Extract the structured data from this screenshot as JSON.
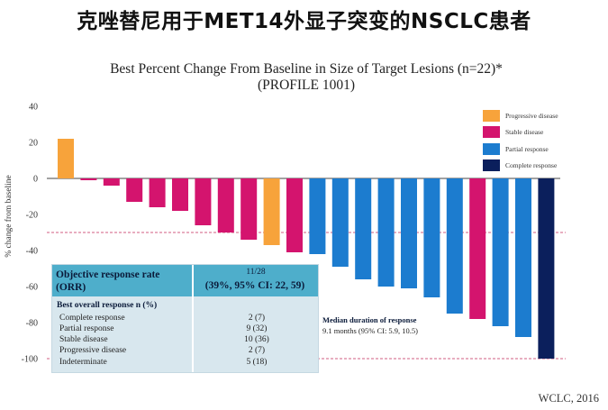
{
  "slide_title": "克唑替尼用于MET14外显子突变的NSCLC患者",
  "chart_data": {
    "type": "bar",
    "title": "Best Percent Change From Baseline in Size of Target Lesions (n=22)*",
    "subtitle": "(PROFILE 1001)",
    "ylabel": "% change from baseline",
    "xlabel": "",
    "ylim": [
      -100,
      40
    ],
    "yticks": [
      40,
      20,
      0,
      -20,
      -40,
      -60,
      -80,
      -100
    ],
    "values": [
      22,
      -1,
      -4,
      -13,
      -16,
      -18,
      -26,
      -30,
      -34,
      -37,
      -41,
      -42,
      -49,
      -56,
      -60,
      -61,
      -66,
      -75,
      -78,
      -82,
      -88,
      -100
    ],
    "categories_by_bar": [
      "Progressive disease",
      "Stable disease",
      "Stable disease",
      "Stable disease",
      "Stable disease",
      "Stable disease",
      "Stable disease",
      "Stable disease",
      "Stable disease",
      "Progressive disease",
      "Stable disease",
      "Partial response",
      "Partial response",
      "Partial response",
      "Partial response",
      "Partial response",
      "Partial response",
      "Partial response",
      "Stable disease",
      "Partial response",
      "Partial response",
      "Complete response"
    ],
    "reference_lines": [
      -30,
      -100
    ],
    "legend": [
      {
        "label": "Progressive disease",
        "color": "#f7a33b"
      },
      {
        "label": "Stable disease",
        "color": "#d4146e"
      },
      {
        "label": "Partial response",
        "color": "#1c7ccf"
      },
      {
        "label": "Complete response",
        "color": "#0b1f5c"
      }
    ],
    "legend_position": "top-right"
  },
  "response_table": {
    "orr_label": "Objective response rate (ORR)",
    "orr_count": "11/28",
    "orr_rate": "(39%, 95% CI: 22, 59)",
    "bor_header": "Best overall response n (%)",
    "rows": [
      {
        "label": "Complete response",
        "value": "2 (7)"
      },
      {
        "label": "Partial response",
        "value": "9 (32)"
      },
      {
        "label": "Stable disease",
        "value": "10 (36)"
      },
      {
        "label": "Progressive disease",
        "value": "2 (7)"
      },
      {
        "label": "Indeterminate",
        "value": "5 (18)"
      }
    ]
  },
  "median_duration": {
    "title": "Median duration of response",
    "value": "9.1 months (95% CI: 5.9, 10.5)"
  },
  "source": "WCLC, 2016"
}
